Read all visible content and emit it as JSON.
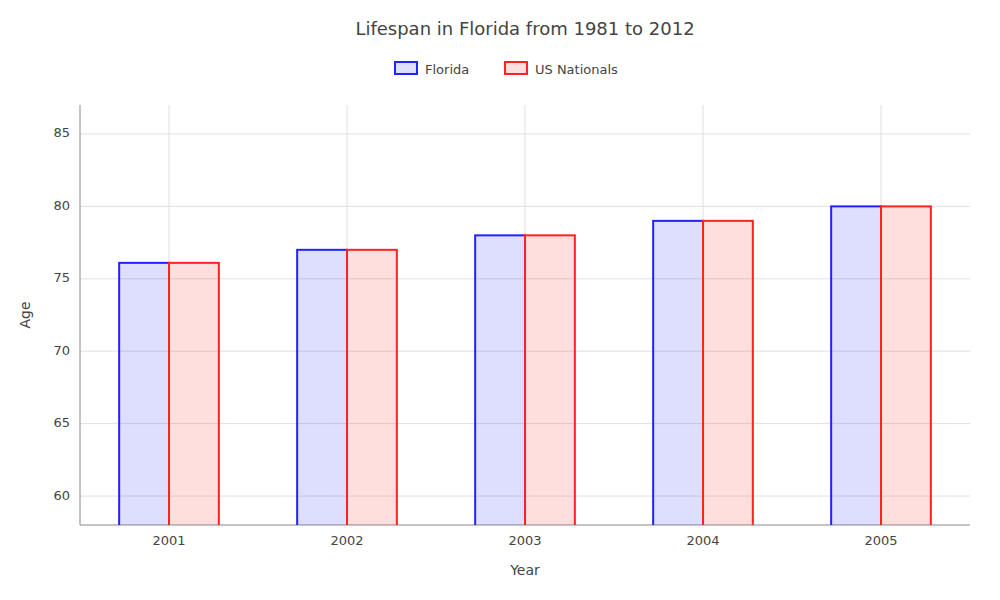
{
  "chart_data": {
    "type": "bar",
    "title": "Lifespan in Florida from 1981 to 2012",
    "x_label": "Year",
    "y_label": "Age",
    "categories": [
      "2001",
      "2002",
      "2003",
      "2004",
      "2005"
    ],
    "series": [
      {
        "name": "Florida",
        "color": "#2222ff",
        "values": [
          76.1,
          77.0,
          78.0,
          79.0,
          80.0
        ]
      },
      {
        "name": "US Nationals",
        "color": "#ff2222",
        "values": [
          76.1,
          77.0,
          78.0,
          79.0,
          80.0
        ]
      }
    ],
    "ylim": [
      58,
      87
    ],
    "yticks": [
      60,
      65,
      70,
      75,
      80,
      85
    ],
    "grid": true,
    "legend": "top"
  }
}
